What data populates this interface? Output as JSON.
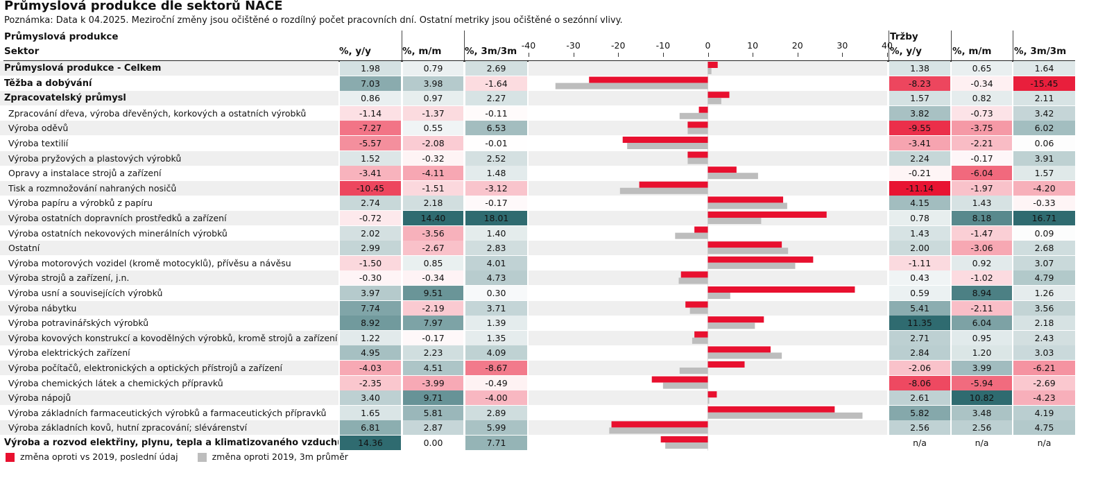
{
  "title": "Průmyslová produkce dle sektorů NACE",
  "note": "Poznámka: Data k 04.2025. Meziroční změny jsou očištěné o rozdílný počet pracovních dní. Ostatní metriky jsou očištěné o sezónní vlivy.",
  "headers": {
    "group_left": "Průmyslová produkce",
    "sector": "Sektor",
    "yy": "%, y/y",
    "mm": "%, m/m",
    "m3": "%, 3m/3m",
    "group_right": "Tržby",
    "t_yy": "%, y/y",
    "t_mm": "%, m/m",
    "t_m3": "%, 3m/3m"
  },
  "legend": {
    "red": "změna oproti vs 2019, poslední údaj",
    "grey": "změna oproti 2019, 3m průměr"
  },
  "colors": {
    "bar_red": "#e8102f",
    "bar_grey": "#bdbdbd",
    "neg_strong": "#e8102f",
    "pos_strong": "#2f6b70"
  },
  "chart_data": {
    "type": "bar",
    "orientation": "horizontal",
    "xlim": [
      -40,
      40
    ],
    "ticks": [
      "-40",
      "-30",
      "-20",
      "-10",
      "0",
      "10",
      "20",
      "30",
      "40"
    ],
    "series": [
      {
        "name": "změna oproti vs 2019, poslední údaj",
        "color": "#e8102f",
        "values": [
          2.2,
          -26.5,
          4.8,
          -2.0,
          -4.5,
          -19.0,
          -4.5,
          6.4,
          -15.3,
          16.8,
          26.5,
          -3.0,
          16.5,
          23.5,
          -6.0,
          32.8,
          -5.0,
          12.5,
          -3.0,
          14.0,
          8.2,
          -12.5,
          2.0,
          28.3,
          -21.5,
          -10.5
        ]
      },
      {
        "name": "změna oproti 2019, 3m průměr",
        "color": "#bdbdbd",
        "values": [
          0.8,
          -34.0,
          3.0,
          -6.3,
          -4.5,
          -18.0,
          -4.5,
          11.2,
          -19.6,
          17.7,
          11.9,
          -7.3,
          17.9,
          19.5,
          -6.5,
          5.0,
          -4.0,
          10.5,
          -3.5,
          16.5,
          -6.3,
          -10.0,
          0.3,
          34.5,
          -22.0,
          -9.5
        ]
      }
    ]
  },
  "rows": [
    {
      "label": "Průmyslová produkce - Celkem",
      "bold": true,
      "yy": "1.98",
      "mm": "0.79",
      "m3": "2.69",
      "t_yy": "1.38",
      "t_mm": "0.65",
      "t_m3": "1.64"
    },
    {
      "label": "Těžba a dobývání",
      "bold": true,
      "yy": "7.03",
      "mm": "3.98",
      "m3": "-1.64",
      "t_yy": "-8.23",
      "t_mm": "-0.34",
      "t_m3": "-15.45"
    },
    {
      "label": "Zpracovatelský průmysl",
      "bold": true,
      "yy": "0.86",
      "mm": "0.97",
      "m3": "2.27",
      "t_yy": "1.57",
      "t_mm": "0.82",
      "t_m3": "2.11"
    },
    {
      "label": "Zpracování dřeva, výroba dřevěných, korkových a ostatních výrobků",
      "bold": false,
      "yy": "-1.14",
      "mm": "-1.37",
      "m3": "-0.11",
      "t_yy": "3.82",
      "t_mm": "-0.73",
      "t_m3": "3.42"
    },
    {
      "label": "Výroba oděvů",
      "bold": false,
      "yy": "-7.27",
      "mm": "0.55",
      "m3": "6.53",
      "t_yy": "-9.55",
      "t_mm": "-3.75",
      "t_m3": "6.02"
    },
    {
      "label": "Výroba textilií",
      "bold": false,
      "yy": "-5.57",
      "mm": "-2.08",
      "m3": "-0.01",
      "t_yy": "-3.41",
      "t_mm": "-2.21",
      "t_m3": "0.06"
    },
    {
      "label": "Výroba pryžových a plastových výrobků",
      "bold": false,
      "yy": "1.52",
      "mm": "-0.32",
      "m3": "2.52",
      "t_yy": "2.24",
      "t_mm": "-0.17",
      "t_m3": "3.91"
    },
    {
      "label": "Opravy a instalace strojů a zařízení",
      "bold": false,
      "yy": "-3.41",
      "mm": "-4.11",
      "m3": "1.48",
      "t_yy": "-0.21",
      "t_mm": "-6.04",
      "t_m3": "1.57"
    },
    {
      "label": "Tisk a rozmnožování nahraných nosičů",
      "bold": false,
      "yy": "-10.45",
      "mm": "-1.51",
      "m3": "-3.12",
      "t_yy": "-11.14",
      "t_mm": "-1.97",
      "t_m3": "-4.20"
    },
    {
      "label": "Výroba papíru a výrobků z papíru",
      "bold": false,
      "yy": "2.74",
      "mm": "2.18",
      "m3": "-0.17",
      "t_yy": "4.15",
      "t_mm": "1.43",
      "t_m3": "-0.33"
    },
    {
      "label": "Výroba ostatních dopravních prostředků a zařízení",
      "bold": false,
      "yy": "-0.72",
      "mm": "14.40",
      "m3": "18.01",
      "t_yy": "0.78",
      "t_mm": "8.18",
      "t_m3": "16.71"
    },
    {
      "label": "Výroba ostatních nekovových minerálních výrobků",
      "bold": false,
      "yy": "2.02",
      "mm": "-3.56",
      "m3": "1.40",
      "t_yy": "1.43",
      "t_mm": "-1.47",
      "t_m3": "0.09"
    },
    {
      "label": "Ostatní",
      "bold": false,
      "yy": "2.99",
      "mm": "-2.67",
      "m3": "2.83",
      "t_yy": "2.00",
      "t_mm": "-3.06",
      "t_m3": "2.68"
    },
    {
      "label": "Výroba motorových vozidel (kromě motocyklů), přívěsu a návěsu",
      "bold": false,
      "yy": "-1.50",
      "mm": "0.85",
      "m3": "4.01",
      "t_yy": "-1.11",
      "t_mm": "0.92",
      "t_m3": "3.07"
    },
    {
      "label": "Výroba strojů a  zařízení, j.n.",
      "bold": false,
      "yy": "-0.30",
      "mm": "-0.34",
      "m3": "4.73",
      "t_yy": "0.43",
      "t_mm": "-1.02",
      "t_m3": "4.79"
    },
    {
      "label": "Výroba usní a souvisejících výrobků",
      "bold": false,
      "yy": "3.97",
      "mm": "9.51",
      "m3": "0.30",
      "t_yy": "0.59",
      "t_mm": "8.94",
      "t_m3": "1.26"
    },
    {
      "label": "Výroba nábytku",
      "bold": false,
      "yy": "7.74",
      "mm": "-2.19",
      "m3": "3.71",
      "t_yy": "5.41",
      "t_mm": "-2.11",
      "t_m3": "3.56"
    },
    {
      "label": "Výroba potravinářských výrobků",
      "bold": false,
      "yy": "8.92",
      "mm": "7.97",
      "m3": "1.39",
      "t_yy": "11.35",
      "t_mm": "6.04",
      "t_m3": "2.18"
    },
    {
      "label": "Výroba kovových konstrukcí a kovodělných výrobků, kromě strojů a zařízení",
      "bold": false,
      "yy": "1.22",
      "mm": "-0.17",
      "m3": "1.35",
      "t_yy": "2.71",
      "t_mm": "0.95",
      "t_m3": "2.43"
    },
    {
      "label": "Výroba elektrických  zařízení",
      "bold": false,
      "yy": "4.95",
      "mm": "2.23",
      "m3": "4.09",
      "t_yy": "2.84",
      "t_mm": "1.20",
      "t_m3": "3.03"
    },
    {
      "label": "Výroba počítačů, elektronických a optických přístrojů a zařízení",
      "bold": false,
      "yy": "-4.03",
      "mm": "4.51",
      "m3": "-8.67",
      "t_yy": "-2.06",
      "t_mm": "3.99",
      "t_m3": "-6.21"
    },
    {
      "label": "Výroba chemických látek a chemických přípravků",
      "bold": false,
      "yy": "-2.35",
      "mm": "-3.99",
      "m3": "-0.49",
      "t_yy": "-8.06",
      "t_mm": "-5.94",
      "t_m3": "-2.69"
    },
    {
      "label": "Výroba nápojů",
      "bold": false,
      "yy": "3.40",
      "mm": "9.71",
      "m3": "-4.00",
      "t_yy": "2.61",
      "t_mm": "10.82",
      "t_m3": "-4.23"
    },
    {
      "label": "Výroba základních farmaceutických výrobků a farmaceutických přípravků",
      "bold": false,
      "yy": "1.65",
      "mm": "5.81",
      "m3": "2.89",
      "t_yy": "5.82",
      "t_mm": "3.48",
      "t_m3": "4.19"
    },
    {
      "label": "Výroba základních kovů, hutní zpracování; slévárenství",
      "bold": false,
      "yy": "6.81",
      "mm": "2.87",
      "m3": "5.99",
      "t_yy": "2.56",
      "t_mm": "2.56",
      "t_m3": "4.75"
    },
    {
      "label": "Výroba a rozvod elektřiny, plynu, tepla a klimatizovaného vzduchu",
      "bold": true,
      "yy": "14.36",
      "mm": "0.00",
      "m3": "7.71",
      "t_yy": "n/a",
      "t_mm": "n/a",
      "t_m3": "n/a"
    }
  ]
}
